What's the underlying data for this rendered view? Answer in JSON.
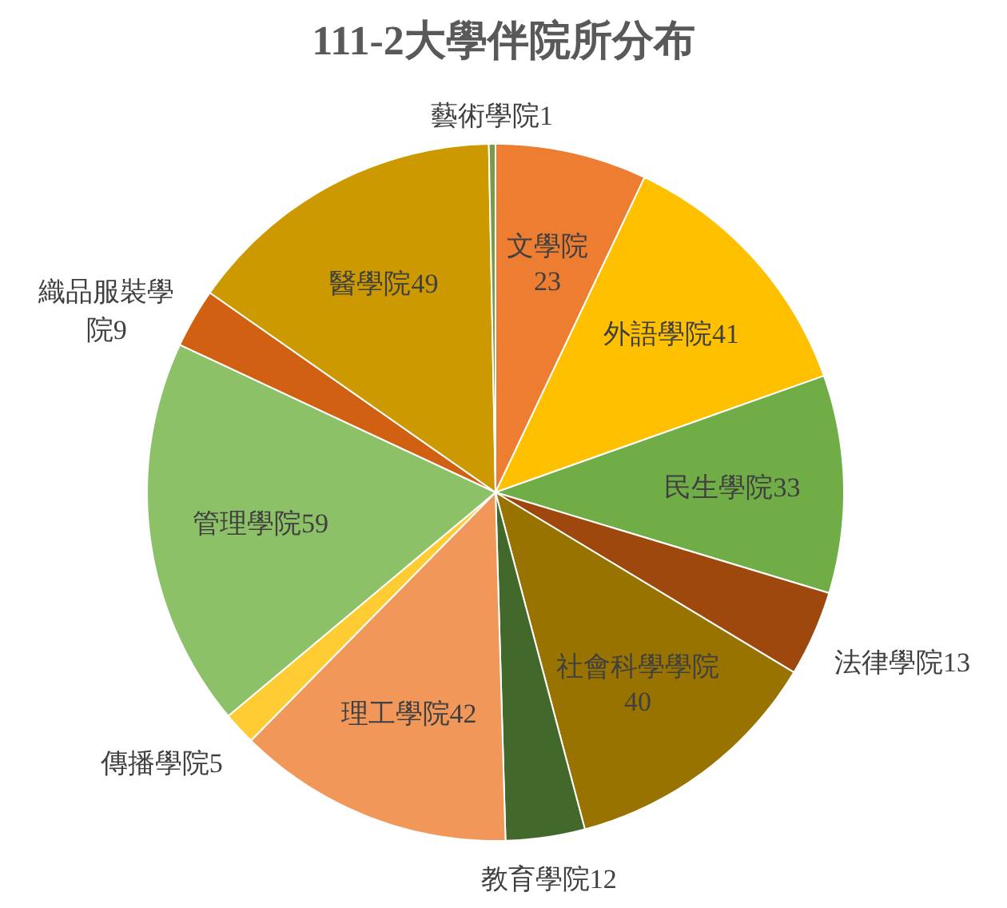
{
  "chart_data": {
    "type": "pie",
    "title": "111-2大學伴院所分布",
    "categories": [
      "文學院",
      "外語學院",
      "民生學院",
      "法律學院",
      "社會科學學院",
      "教育學院",
      "理工學院",
      "傳播學院",
      "管理學院",
      "織品服裝學院",
      "醫學院",
      "藝術學院"
    ],
    "values": [
      23,
      41,
      33,
      13,
      40,
      12,
      42,
      5,
      59,
      9,
      49,
      1
    ],
    "colors": [
      "#ed7d31",
      "#ffc000",
      "#70ad47",
      "#9e480e",
      "#997300",
      "#43682b",
      "#f1975a",
      "#ffcd33",
      "#8cc168",
      "#d26012",
      "#cc9a00",
      "#7a9a4a"
    ],
    "data_labels": true
  }
}
